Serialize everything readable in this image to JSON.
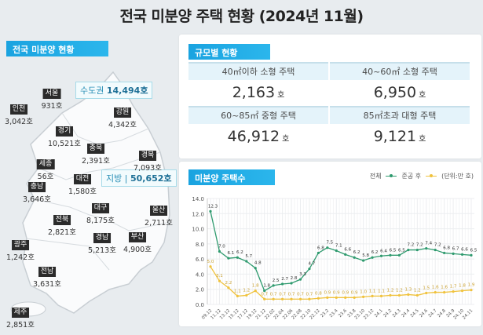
{
  "title": "전국 미분양 주택 현황 (2024년 11월)",
  "national": {
    "heading": "전국 미분양 현황",
    "capital_area": {
      "label": "수도권",
      "value": "14,494호"
    },
    "provincial": {
      "label": "지방",
      "value": "50,652호"
    },
    "regions": [
      {
        "name": "서울",
        "value": "931호"
      },
      {
        "name": "인천",
        "value": "3,042호"
      },
      {
        "name": "경기",
        "value": "10,521호"
      },
      {
        "name": "강원",
        "value": "4,342호"
      },
      {
        "name": "충북",
        "value": "2,391호"
      },
      {
        "name": "경북",
        "value": "7,093호"
      },
      {
        "name": "세종",
        "value": "56호"
      },
      {
        "name": "대전",
        "value": "1,580호"
      },
      {
        "name": "충남",
        "value": "3,646호"
      },
      {
        "name": "대구",
        "value": "8,175호"
      },
      {
        "name": "울산",
        "value": "2,711호"
      },
      {
        "name": "전북",
        "value": "2,821호"
      },
      {
        "name": "경남",
        "value": "5,213호"
      },
      {
        "name": "부산",
        "value": "4,900호"
      },
      {
        "name": "광주",
        "value": "1,242호"
      },
      {
        "name": "전남",
        "value": "3,631호"
      },
      {
        "name": "제주",
        "value": "2,851호"
      }
    ]
  },
  "by_size": {
    "heading": "규모별 현황",
    "unit": "호",
    "items": [
      {
        "label": "40㎡이하 소형 주택",
        "value": "2,163"
      },
      {
        "label": "40~60㎡ 소형 주택",
        "value": "6,950"
      },
      {
        "label": "60~85㎡ 중형 주택",
        "value": "46,912"
      },
      {
        "label": "85㎡초과 대형 주택",
        "value": "9,121"
      }
    ]
  },
  "chart_data": {
    "type": "line",
    "title": "미분양 주택수",
    "unit_note": "(단위:만 호)",
    "ylim": [
      0,
      14
    ],
    "yticks": [
      "0.0",
      "2.0",
      "4.0",
      "6.0",
      "8.0",
      "10.0",
      "12.0",
      "14.0"
    ],
    "grid": true,
    "legend": "top-right",
    "categories": [
      "09.12",
      "11.12",
      "13.12",
      "15.12",
      "17.12",
      "19.12",
      "21.12",
      "22.02",
      "22.04",
      "22.06",
      "22.08",
      "22.10",
      "22.12",
      "23.2",
      "23.4",
      "23.6",
      "23.8",
      "23.10",
      "23.12",
      "24.1",
      "24.2",
      "24.3",
      "24.4",
      "24.5",
      "24.6",
      "24.7",
      "24.8",
      "24.9",
      "24.10",
      "24.11"
    ],
    "series": [
      {
        "name": "전체",
        "color": "#2e9a6e",
        "values": [
          12.3,
          7.0,
          6.1,
          6.2,
          5.7,
          4.8,
          1.8,
          2.5,
          2.7,
          2.8,
          3.3,
          4.7,
          6.8,
          7.5,
          7.1,
          6.6,
          6.2,
          5.8,
          6.2,
          6.4,
          6.5,
          6.5,
          7.2,
          7.2,
          7.4,
          7.2,
          6.8,
          6.7,
          6.6,
          6.5
        ]
      },
      {
        "name": "준공 후",
        "color": "#f0c23c",
        "values": [
          5.0,
          3.1,
          2.2,
          1.1,
          1.2,
          1.8,
          0.7,
          0.7,
          0.7,
          0.7,
          0.7,
          0.7,
          0.8,
          0.9,
          0.9,
          0.9,
          0.9,
          1.0,
          1.1,
          1.1,
          1.2,
          1.2,
          1.3,
          1.2,
          1.5,
          1.6,
          1.6,
          1.7,
          1.8,
          1.9
        ]
      }
    ]
  }
}
